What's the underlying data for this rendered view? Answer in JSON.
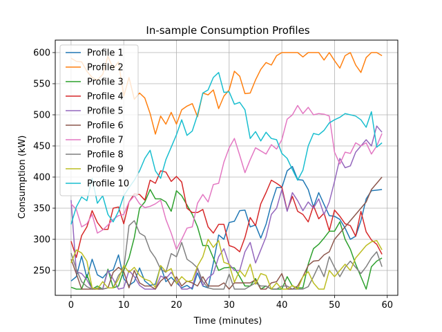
{
  "chart_data": {
    "type": "line",
    "title": "In-sample Consumption Profiles",
    "xlabel": "Time (minutes)",
    "ylabel": "Consumption (kW)",
    "xlim": [
      -3,
      62
    ],
    "ylim": [
      210,
      620
    ],
    "xticks": [
      0,
      10,
      20,
      30,
      40,
      50,
      60
    ],
    "yticks": [
      250,
      300,
      350,
      400,
      450,
      500,
      550,
      600
    ],
    "grid": true,
    "legend_position": "upper-left",
    "x": [
      0,
      1,
      2,
      3,
      4,
      5,
      6,
      7,
      8,
      9,
      10,
      11,
      12,
      13,
      14,
      15,
      16,
      17,
      18,
      19,
      20,
      21,
      22,
      23,
      24,
      25,
      26,
      27,
      28,
      29,
      30,
      31,
      32,
      33,
      34,
      35,
      36,
      37,
      38,
      39,
      40,
      41,
      42,
      43,
      44,
      45,
      46,
      47,
      48,
      49,
      50,
      51,
      52,
      53,
      54,
      55,
      56,
      57,
      58,
      59
    ],
    "series": [
      {
        "name": "Profile 1",
        "color": "#1f77b4",
        "values": [
          233,
          240,
          273,
          238,
          268,
          243,
          238,
          248,
          251,
          275,
          237,
          226,
          232,
          254,
          233,
          226,
          228,
          257,
          232,
          239,
          230,
          222,
          226,
          220,
          246,
          225,
          222,
          262,
          307,
          300,
          327,
          329,
          346,
          347,
          320,
          323,
          302,
          324,
          357,
          383,
          383,
          410,
          417,
          396,
          395,
          380,
          352,
          375,
          356,
          338,
          337,
          332,
          318,
          300,
          305,
          330,
          365,
          378,
          379,
          380
        ]
      },
      {
        "name": "Profile 2",
        "color": "#ff7f0e",
        "values": [
          591,
          586,
          585,
          570,
          560,
          556,
          565,
          594,
          574,
          585,
          530,
          560,
          525,
          535,
          527,
          502,
          469,
          498,
          485,
          504,
          485,
          508,
          514,
          518,
          497,
          535,
          532,
          540,
          510,
          530,
          540,
          570,
          562,
          534,
          535,
          556,
          573,
          584,
          580,
          595,
          600,
          600,
          600,
          600,
          593,
          600,
          600,
          600,
          588,
          600,
          587,
          575,
          595,
          600,
          580,
          568,
          592,
          600,
          600,
          595
        ]
      },
      {
        "name": "Profile 3",
        "color": "#2ca02c",
        "values": [
          223,
          220,
          220,
          243,
          220,
          225,
          220,
          252,
          222,
          225,
          250,
          270,
          303,
          350,
          360,
          380,
          365,
          365,
          360,
          345,
          378,
          370,
          355,
          340,
          320,
          290,
          290,
          270,
          250,
          254,
          255,
          254,
          240,
          225,
          225,
          237,
          220,
          225,
          220,
          220,
          220,
          240,
          225,
          222,
          222,
          260,
          285,
          292,
          302,
          313,
          313,
          328,
          300,
          284,
          260,
          240,
          220,
          256,
          265,
          270
        ]
      },
      {
        "name": "Profile 4",
        "color": "#d62728",
        "values": [
          297,
          271,
          306,
          320,
          346,
          327,
          316,
          316,
          350,
          352,
          325,
          360,
          373,
          372,
          363,
          395,
          390,
          410,
          408,
          393,
          401,
          392,
          350,
          343,
          343,
          348,
          320,
          310,
          324,
          324,
          290,
          287,
          280,
          303,
          335,
          322,
          357,
          375,
          395,
          390,
          384,
          346,
          369,
          345,
          340,
          328,
          354,
          333,
          342,
          314,
          347,
          337,
          325,
          322,
          305,
          345,
          312,
          299,
          292,
          276
        ]
      },
      {
        "name": "Profile 5",
        "color": "#9467bd",
        "values": [
          363,
          248,
          245,
          235,
          220,
          221,
          220,
          250,
          236,
          220,
          222,
          250,
          240,
          226,
          220,
          220,
          220,
          241,
          237,
          247,
          235,
          220,
          220,
          223,
          254,
          226,
          238,
          245,
          272,
          285,
          260,
          250,
          250,
          280,
          295,
          262,
          283,
          304,
          340,
          350,
          380,
          345,
          375,
          362,
          346,
          360,
          350,
          365,
          340,
          360,
          393,
          430,
          415,
          418,
          440,
          450,
          460,
          450,
          482,
          472
        ]
      },
      {
        "name": "Profile 6",
        "color": "#8c564b",
        "values": [
          268,
          245,
          220,
          220,
          220,
          220,
          220,
          222,
          247,
          255,
          248,
          222,
          250,
          230,
          225,
          225,
          220,
          233,
          240,
          225,
          240,
          225,
          233,
          230,
          225,
          240,
          225,
          225,
          225,
          230,
          220,
          230,
          230,
          230,
          230,
          235,
          220,
          220,
          230,
          232,
          245,
          220,
          220,
          225,
          240,
          258,
          265,
          266,
          275,
          280,
          300,
          310,
          320,
          330,
          340,
          350,
          360,
          380,
          390,
          400
        ]
      },
      {
        "name": "Profile 7",
        "color": "#e377c2",
        "values": [
          357,
          348,
          320,
          325,
          340,
          310,
          315,
          323,
          332,
          338,
          340,
          360,
          370,
          357,
          351,
          353,
          357,
          363,
          332,
          310,
          284,
          300,
          318,
          320,
          358,
          372,
          360,
          388,
          390,
          424,
          447,
          462,
          435,
          407,
          428,
          447,
          442,
          437,
          452,
          445,
          460,
          493,
          500,
          515,
          502,
          512,
          500,
          502,
          501,
          498,
          440,
          421,
          440,
          438,
          455,
          450,
          455,
          437,
          450,
          470
        ]
      },
      {
        "name": "Profile 8",
        "color": "#7f7f7f",
        "values": [
          278,
          252,
          232,
          224,
          220,
          222,
          220,
          222,
          222,
          242,
          252,
          322,
          330,
          310,
          305,
          282,
          270,
          252,
          247,
          277,
          272,
          295,
          268,
          262,
          254,
          232,
          222,
          220,
          220,
          220,
          244,
          220,
          220,
          220,
          225,
          230,
          225,
          225,
          220,
          220,
          225,
          225,
          220,
          220,
          220,
          224,
          240,
          258,
          240,
          272,
          255,
          240,
          255,
          265,
          255,
          245,
          256,
          270,
          280,
          256
        ]
      },
      {
        "name": "Profile 9",
        "color": "#bcbd22",
        "values": [
          262,
          283,
          278,
          265,
          222,
          220,
          232,
          222,
          222,
          236,
          258,
          247,
          255,
          242,
          236,
          233,
          223,
          258,
          248,
          253,
          229,
          240,
          232,
          234,
          257,
          272,
          300,
          287,
          298,
          263,
          260,
          231,
          250,
          240,
          260,
          228,
          245,
          242,
          220,
          230,
          220,
          220,
          226,
          220,
          240,
          248,
          230,
          220,
          220,
          250,
          240,
          250,
          260,
          250,
          270,
          280,
          290,
          296,
          298,
          283
        ]
      },
      {
        "name": "Profile 10",
        "color": "#17becf",
        "values": [
          324,
          352,
          368,
          362,
          398,
          358,
          370,
          340,
          328,
          345,
          370,
          383,
          395,
          410,
          430,
          443,
          410,
          398,
          428,
          448,
          468,
          492,
          467,
          474,
          500,
          535,
          540,
          560,
          568,
          536,
          537,
          517,
          520,
          508,
          462,
          473,
          458,
          472,
          462,
          460,
          438,
          430,
          412,
          395,
          411,
          450,
          470,
          468,
          475,
          487,
          492,
          496,
          502,
          500,
          498,
          492,
          480,
          505,
          448,
          455
        ]
      }
    ]
  }
}
